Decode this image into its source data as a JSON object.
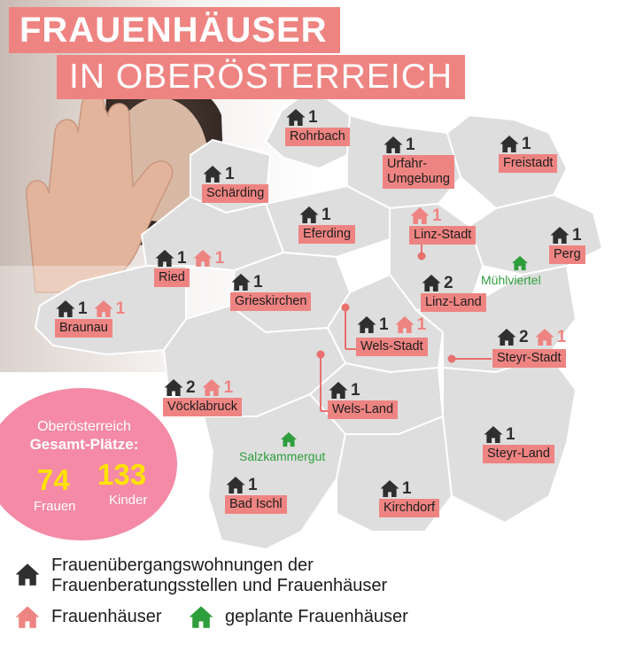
{
  "title": {
    "line1": "FRAUENHÄUSER",
    "line2": "IN OBERÖSTERREICH"
  },
  "colors": {
    "accent": "#ee8482",
    "house_dark": "#2f2f2f",
    "house_pink": "#ee8482",
    "planned_green": "#2e9e3c",
    "badge_pink": "#f48aa6",
    "badge_yellow": "#ffe200"
  },
  "districts": [
    {
      "name": "Rohrbach",
      "dark": "1",
      "pink": ""
    },
    {
      "name": "Schärding",
      "dark": "1",
      "pink": ""
    },
    {
      "name": "Urfahr-",
      "name2": "Umgebung",
      "dark": "1",
      "pink": ""
    },
    {
      "name": "Freistadt",
      "dark": "1",
      "pink": ""
    },
    {
      "name": "Eferding",
      "dark": "1",
      "pink": ""
    },
    {
      "name": "Linz-Stadt",
      "dark": "",
      "pink": "1"
    },
    {
      "name": "Perg",
      "dark": "1",
      "pink": ""
    },
    {
      "name": "Ried",
      "dark": "1",
      "pink": "1"
    },
    {
      "name": "Grieskirchen",
      "dark": "1",
      "pink": ""
    },
    {
      "name": "Linz-Land",
      "dark": "2",
      "pink": ""
    },
    {
      "name": "Braunau",
      "dark": "1",
      "pink": "1"
    },
    {
      "name": "Wels-Stadt",
      "dark": "1",
      "pink": "1"
    },
    {
      "name": "Steyr-Stadt",
      "dark": "2",
      "pink": "1"
    },
    {
      "name": "Vöcklabruck",
      "dark": "2",
      "pink": "1"
    },
    {
      "name": "Wels-Land",
      "dark": "1",
      "pink": ""
    },
    {
      "name": "Steyr-Land",
      "dark": "1",
      "pink": ""
    },
    {
      "name": "Bad Ischl",
      "dark": "1",
      "pink": ""
    },
    {
      "name": "Kirchdorf",
      "dark": "1",
      "pink": ""
    }
  ],
  "planned": [
    {
      "name": "Mühlviertel"
    },
    {
      "name": "Salzkammergut"
    }
  ],
  "badge": {
    "line1": "Oberösterreich",
    "line2": "Gesamt-Plätze:",
    "frauen_num": "74",
    "frauen_label": "Frauen",
    "kinder_num": "133",
    "kinder_label": "Kinder"
  },
  "legend": {
    "dark_line1": "Frauenübergangswohnungen der",
    "dark_line2": "Frauenberatungsstellen und Frauenhäuser",
    "pink": "Frauenhäuser",
    "green": "geplante Frauenhäuser"
  }
}
